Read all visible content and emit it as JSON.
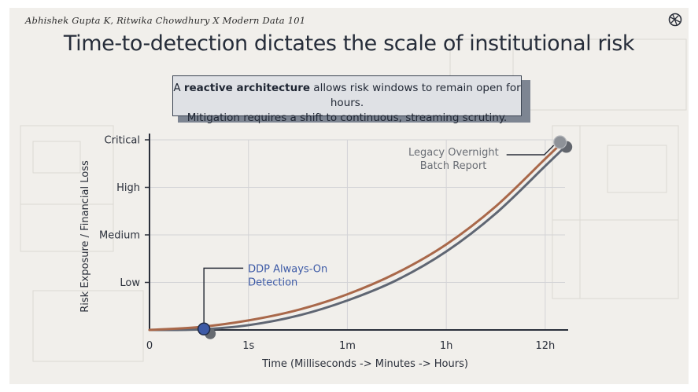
{
  "header": {
    "attribution": "Abhishek Gupta K, Ritwika Chowdhury X Modern Data 101",
    "title": "Time-to-detection dictates the scale of institutional risk"
  },
  "callout": {
    "line1_prefix": "A ",
    "line1_bold": "reactive architecture",
    "line1_suffix": " allows risk windows to remain open for hours.",
    "line2": "Mitigation requires a shift to continuous, streaming scrutiny."
  },
  "colors": {
    "legacy_curve": "#a9684a",
    "ddp_curve": "#5f6673",
    "ddp_marker": "#3d5aa6",
    "legacy_marker": "#8e9298",
    "axis": "#2a2f3a"
  },
  "chart_data": {
    "type": "line",
    "xlabel": "Time (Milliseconds -> Minutes -> Hours)",
    "ylabel": "Risk Exposure / Financial Loss",
    "x_ticks": [
      "0",
      "1s",
      "1m",
      "1h",
      "12h"
    ],
    "y_ticks": [
      "Low",
      "Medium",
      "High",
      "Critical"
    ],
    "xlim": [
      0,
      4.2
    ],
    "ylim": [
      0,
      4
    ],
    "grid": true,
    "series": [
      {
        "x": [
          0,
          0.5,
          1,
          1.5,
          2,
          2.5,
          3,
          3.5,
          4,
          4.2
        ],
        "y": [
          0,
          0.06,
          0.2,
          0.42,
          0.75,
          1.2,
          1.8,
          2.6,
          3.6,
          4.0
        ]
      },
      {
        "x": [
          0,
          0.5,
          1,
          1.5,
          2,
          2.5,
          3,
          3.5,
          4,
          4.2
        ],
        "y": [
          0,
          0.01,
          0.1,
          0.3,
          0.62,
          1.05,
          1.65,
          2.45,
          3.45,
          3.85
        ]
      }
    ],
    "annotations": [
      {
        "label_line1": "DDP Always-On",
        "label_line2": "Detection",
        "x": 0.55,
        "y": 0.02
      },
      {
        "label_line1": "Legacy Overnight",
        "label_line2": "Batch Report",
        "x": 4.15,
        "y": 3.95
      }
    ]
  }
}
